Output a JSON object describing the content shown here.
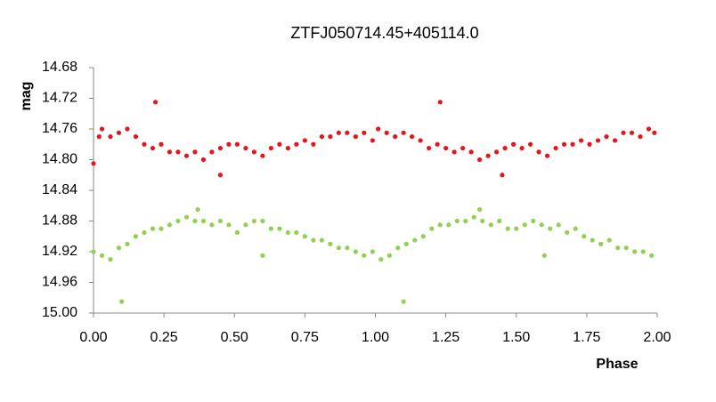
{
  "chart_data": {
    "type": "scatter",
    "title": "ZTFJ050714.45+405114.0",
    "x_label": "Phase",
    "y_label": "mag",
    "xlim": [
      0,
      2
    ],
    "ylim": [
      14.68,
      15.0
    ],
    "y_inverted": true,
    "grid": false,
    "xticks": [
      {
        "value": 0,
        "label": "0.00"
      },
      {
        "value": 0.25,
        "label": "0.25"
      },
      {
        "value": 0.5,
        "label": "0.50"
      },
      {
        "value": 0.75,
        "label": "0.75"
      },
      {
        "value": 1,
        "label": "1.00"
      },
      {
        "value": 1.25,
        "label": "1.25"
      },
      {
        "value": 1.5,
        "label": "1.50"
      },
      {
        "value": 1.75,
        "label": "1.75"
      },
      {
        "value": 2,
        "label": "2.00"
      }
    ],
    "yticks": [
      14.68,
      14.72,
      14.76,
      {
        "value": 14.8,
        "label": "14.80"
      },
      14.84,
      14.88,
      14.92,
      14.96,
      {
        "value": 15.0,
        "label": "15.00"
      }
    ],
    "series": [
      {
        "color": "#e8141a",
        "x": [
          0.0,
          0.02,
          0.03,
          0.06,
          0.09,
          0.12,
          0.15,
          0.18,
          0.22,
          0.21,
          0.24,
          0.27,
          0.3,
          0.33,
          0.36,
          0.39,
          0.42,
          0.45,
          0.45,
          0.48,
          0.51,
          0.54,
          0.57,
          0.6,
          0.63,
          0.66,
          0.69,
          0.72,
          0.75,
          0.78,
          0.81,
          0.84,
          0.87,
          0.9,
          0.93,
          0.96,
          0.99,
          1.01,
          1.04,
          1.07,
          1.1,
          1.13,
          1.16,
          1.19,
          1.23,
          1.22,
          1.25,
          1.28,
          1.31,
          1.34,
          1.37,
          1.4,
          1.43,
          1.45,
          1.46,
          1.49,
          1.52,
          1.55,
          1.58,
          1.61,
          1.64,
          1.67,
          1.7,
          1.73,
          1.76,
          1.79,
          1.82,
          1.85,
          1.88,
          1.91,
          1.94,
          1.97,
          1.99
        ],
        "values": [
          14.805,
          14.77,
          14.76,
          14.77,
          14.765,
          14.76,
          14.77,
          14.78,
          14.725,
          14.785,
          14.78,
          14.79,
          14.79,
          14.795,
          14.79,
          14.8,
          14.79,
          14.82,
          14.785,
          14.78,
          14.78,
          14.785,
          14.79,
          14.795,
          14.785,
          14.78,
          14.785,
          14.78,
          14.775,
          14.78,
          14.77,
          14.77,
          14.765,
          14.765,
          14.77,
          14.765,
          14.775,
          14.76,
          14.765,
          14.77,
          14.765,
          14.77,
          14.775,
          14.785,
          14.725,
          14.78,
          14.785,
          14.79,
          14.785,
          14.79,
          14.8,
          14.795,
          14.79,
          14.82,
          14.785,
          14.78,
          14.785,
          14.78,
          14.79,
          14.795,
          14.785,
          14.78,
          14.78,
          14.775,
          14.78,
          14.775,
          14.77,
          14.775,
          14.765,
          14.765,
          14.77,
          14.76,
          14.765
        ]
      },
      {
        "color": "#92d050",
        "x": [
          0.0,
          0.03,
          0.06,
          0.09,
          0.1,
          0.12,
          0.15,
          0.18,
          0.21,
          0.24,
          0.27,
          0.3,
          0.33,
          0.36,
          0.37,
          0.39,
          0.42,
          0.45,
          0.48,
          0.51,
          0.54,
          0.57,
          0.6,
          0.6,
          0.63,
          0.66,
          0.69,
          0.72,
          0.75,
          0.78,
          0.81,
          0.84,
          0.87,
          0.9,
          0.93,
          0.96,
          0.99,
          1.02,
          1.05,
          1.08,
          1.1,
          1.11,
          1.14,
          1.17,
          1.2,
          1.23,
          1.26,
          1.29,
          1.32,
          1.35,
          1.37,
          1.38,
          1.41,
          1.44,
          1.47,
          1.5,
          1.53,
          1.56,
          1.59,
          1.6,
          1.62,
          1.65,
          1.68,
          1.71,
          1.74,
          1.77,
          1.8,
          1.83,
          1.86,
          1.89,
          1.92,
          1.95,
          1.98
        ],
        "values": [
          14.92,
          14.925,
          14.93,
          14.915,
          14.985,
          14.91,
          14.9,
          14.895,
          14.89,
          14.89,
          14.885,
          14.88,
          14.875,
          14.88,
          14.865,
          14.88,
          14.885,
          14.88,
          14.885,
          14.895,
          14.885,
          14.88,
          14.88,
          14.925,
          14.89,
          14.89,
          14.895,
          14.895,
          14.9,
          14.905,
          14.905,
          14.91,
          14.915,
          14.915,
          14.92,
          14.925,
          14.92,
          14.93,
          14.925,
          14.915,
          14.985,
          14.91,
          14.905,
          14.9,
          14.89,
          14.885,
          14.885,
          14.88,
          14.88,
          14.875,
          14.865,
          14.88,
          14.885,
          14.88,
          14.89,
          14.89,
          14.885,
          14.88,
          14.885,
          14.925,
          14.89,
          14.885,
          14.895,
          14.89,
          14.9,
          14.905,
          14.91,
          14.905,
          14.915,
          14.915,
          14.92,
          14.92,
          14.925
        ]
      }
    ]
  }
}
